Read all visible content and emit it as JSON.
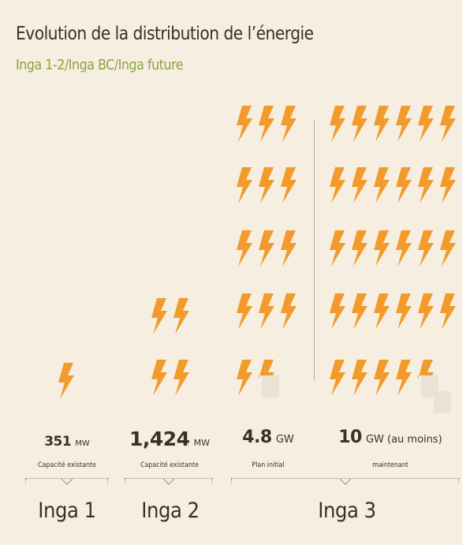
{
  "header": {
    "title": "Evolution de la distribution de l’énergie",
    "subtitle": "Inga 1-2/Inga BC/Inga future"
  },
  "colors": {
    "background": "#f6efe1",
    "bolt": "#f39a2d",
    "subtitle": "#8aa23c",
    "text": "#3a2f29",
    "empty_bolt_slot": "#e9e2d6"
  },
  "icon": "lightning-bolt-icon",
  "groups": [
    {
      "name": "Inga 1",
      "value": "351",
      "unit": "MW",
      "caption": "Capacité existante",
      "bolts": 1
    },
    {
      "name": "Inga 2",
      "value": "1,424",
      "unit": "MW",
      "caption": "Capacité existante",
      "bolts": 4
    },
    {
      "name": "Inga 3",
      "bolts_scenarios": [
        {
          "value": "4.8",
          "unit": "GW",
          "caption": "Plan initial",
          "bolts": 13.5
        },
        {
          "value": "10",
          "unit": "GW (au moins)",
          "caption": "maintenant",
          "bolts": 28.5
        }
      ]
    }
  ]
}
